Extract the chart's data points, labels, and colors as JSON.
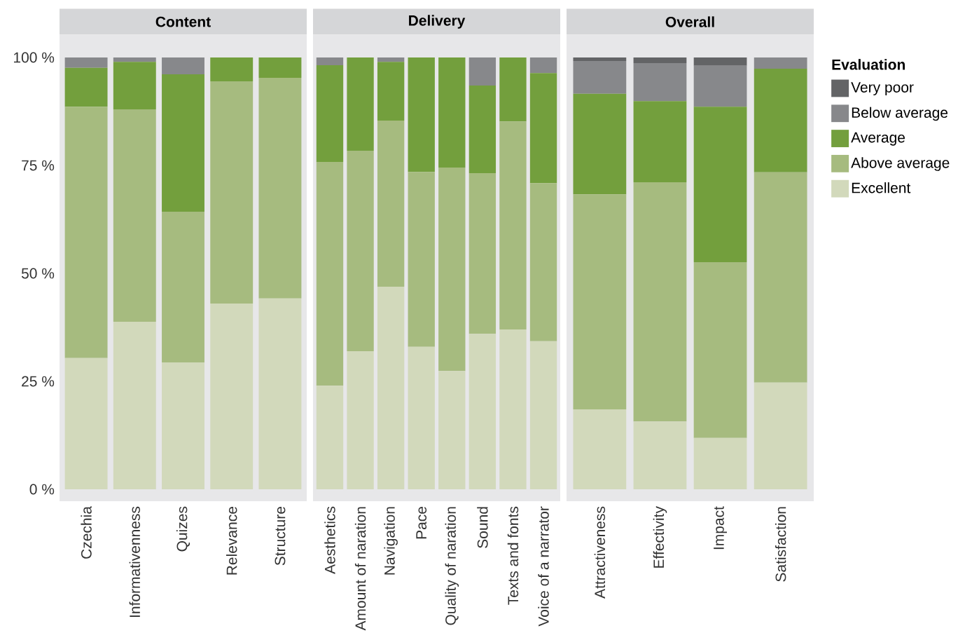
{
  "chart_data": [
    {
      "type": "bar",
      "stacked": true,
      "title": "Content",
      "categories": [
        "Czechia",
        "Informativenness",
        "Quizes",
        "Relevance",
        "Structure"
      ],
      "ylim": [
        0,
        100
      ],
      "yticks": [
        {
          "value": 0,
          "label": "0 %"
        },
        {
          "value": 25,
          "label": "25 %"
        },
        {
          "value": 50,
          "label": "50 %"
        },
        {
          "value": 75,
          "label": "75 %"
        },
        {
          "value": 100,
          "label": "100 %"
        }
      ],
      "series": [
        {
          "color": "#d2d9bb",
          "values": [
            30.4,
            38.8,
            29.4,
            43.0,
            44.2
          ]
        },
        {
          "color": "#a6bb7f",
          "values": [
            58.2,
            49.2,
            34.9,
            51.5,
            51.1
          ]
        },
        {
          "color": "#739f3d",
          "values": [
            9.0,
            11.0,
            31.8,
            5.5,
            4.7
          ]
        },
        {
          "color": "#87888b",
          "values": [
            2.4,
            1.0,
            3.9,
            0,
            0
          ]
        },
        {
          "color": "#636466",
          "values": [
            0,
            0,
            0,
            0,
            0
          ]
        }
      ]
    },
    {
      "type": "bar",
      "stacked": true,
      "title": "Delivery",
      "tick_labels": "x",
      "categories": [
        "Aesthetics",
        "Amount of naration",
        "Navigation",
        "Pace",
        "Quality of naration",
        "Sound",
        "Texts and fonts",
        "Voice of a narrator"
      ],
      "ylim": [
        0,
        100
      ],
      "series": [
        {
          "color": "#d2d9bb",
          "values": [
            24.0,
            32.0,
            46.9,
            33.0,
            27.4,
            36.0,
            37.0,
            34.3
          ]
        },
        {
          "color": "#a6bb7f",
          "values": [
            51.8,
            46.4,
            38.5,
            40.5,
            47.1,
            37.2,
            48.2,
            36.6
          ]
        },
        {
          "color": "#739f3d",
          "values": [
            22.4,
            21.6,
            13.6,
            26.5,
            25.5,
            20.3,
            14.8,
            25.5
          ]
        },
        {
          "color": "#87888b",
          "values": [
            1.8,
            0,
            1.0,
            0,
            0,
            6.5,
            0,
            3.6
          ]
        },
        {
          "color": "#636466",
          "values": [
            0,
            0,
            0,
            0,
            0,
            0,
            0,
            0
          ]
        }
      ]
    },
    {
      "type": "bar",
      "stacked": true,
      "title": "Overall",
      "tick_labels": "x",
      "legend": "right",
      "legend_title": "Evaluation",
      "categories": [
        "Attractiveness",
        "Effectivity",
        "Impact",
        "Satisfaction"
      ],
      "ylim": [
        0,
        100
      ],
      "series": [
        {
          "name": "Excellent",
          "color": "#d2d9bb",
          "values": [
            18.5,
            15.7,
            11.9,
            24.7
          ]
        },
        {
          "name": "Above average",
          "color": "#a6bb7f",
          "values": [
            49.8,
            55.4,
            40.7,
            48.7
          ]
        },
        {
          "name": "Average",
          "color": "#739f3d",
          "values": [
            23.3,
            18.8,
            36.0,
            24.0
          ]
        },
        {
          "name": "Below average",
          "color": "#87888b",
          "values": [
            7.6,
            8.8,
            9.5,
            2.6
          ]
        },
        {
          "name": "Very poor",
          "color": "#636466",
          "values": [
            0.8,
            1.3,
            1.9,
            0
          ]
        }
      ]
    }
  ]
}
